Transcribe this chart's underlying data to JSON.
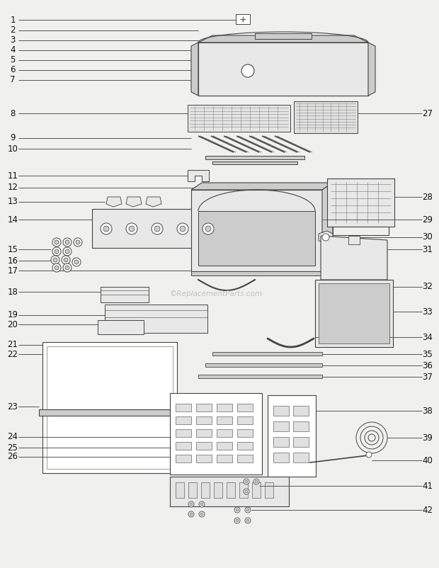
{
  "bg_color": "#f0f0ee",
  "line_color": "#555555",
  "part_fill": "#e8e8e8",
  "part_edge": "#444444",
  "white_fill": "#ffffff",
  "dark_fill": "#cccccc",
  "watermark": "©ReplacementParts.com",
  "lfs": 8.5
}
